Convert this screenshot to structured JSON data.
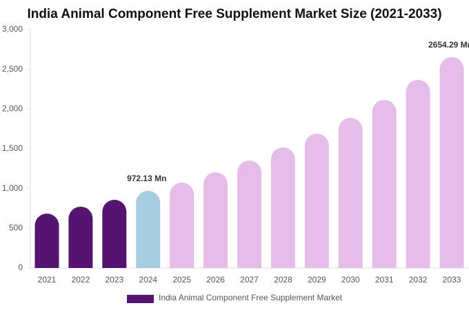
{
  "chart_data": {
    "type": "bar",
    "title": "India Animal Component Free Supplement Market Size (2021-2033)",
    "categories": [
      "2021",
      "2022",
      "2023",
      "2024",
      "2025",
      "2026",
      "2027",
      "2028",
      "2029",
      "2030",
      "2031",
      "2032",
      "2033"
    ],
    "series": [
      {
        "name": "India Animal Component Free Supplement Market",
        "color": "#541470",
        "colors": [
          "#541470",
          "#541470",
          "#541470",
          "#a6cde0",
          "#e6bde8",
          "#e6bde8",
          "#e6bde8",
          "#e6bde8",
          "#e6bde8",
          "#e6bde8",
          "#e6bde8",
          "#e6bde8",
          "#e6bde8"
        ],
        "values": [
          685,
          772,
          858,
          972.13,
          1075,
          1205,
          1353,
          1518,
          1691,
          1890,
          2116,
          2368,
          2654.29
        ],
        "value_labels": [
          null,
          null,
          null,
          "972.13 Mn",
          null,
          null,
          null,
          null,
          null,
          null,
          null,
          null,
          "2654.29 Mn"
        ]
      }
    ],
    "ylim": [
      0,
      3000
    ],
    "yticks": [
      0,
      500,
      {
        "value": 1000,
        "label": "1,000"
      },
      {
        "value": 1500,
        "label": "1,500"
      },
      {
        "value": 2000,
        "label": "2,000"
      },
      {
        "value": 2500,
        "label": "2,500"
      },
      {
        "value": 3000,
        "label": "3,000"
      }
    ],
    "grid": false,
    "legend": "bottom"
  }
}
